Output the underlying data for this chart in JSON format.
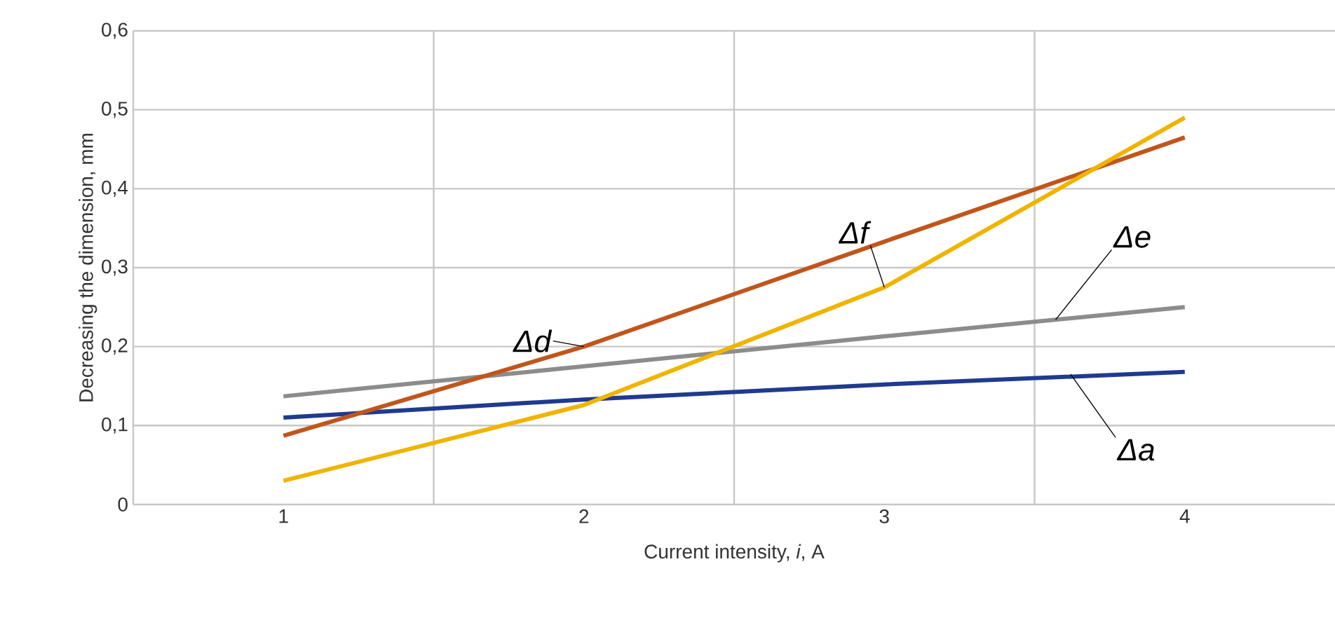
{
  "chart_data": {
    "type": "line",
    "xlabel": "Current intensity, *i*, A",
    "ylabel": "Decreasing the dimension, mm",
    "x": [
      1,
      2,
      3,
      4
    ],
    "series": [
      {
        "color": "#1f3a8f",
        "values": [
          0.11,
          0.133,
          0.152,
          0.168
        ]
      },
      {
        "color": "#8c8c8c",
        "values": [
          0.137,
          0.175,
          0.213,
          0.25
        ]
      },
      {
        "color": "#c0561c",
        "values": [
          0.087,
          0.2,
          0.333,
          0.465
        ]
      },
      {
        "color": "#f0b400",
        "values": [
          0.03,
          0.126,
          0.275,
          0.49
        ]
      }
    ],
    "xlim": [
      0.5,
      4.5
    ],
    "xticks": [
      {
        "value": 0.5,
        "label": null
      },
      1,
      {
        "value": 1.5,
        "label": null
      },
      2,
      {
        "value": 2.5,
        "label": null
      },
      3,
      {
        "value": 3.5,
        "label": null
      },
      4
    ],
    "ylim": [
      0,
      0.6
    ],
    "yticks": [
      0,
      {
        "value": 0.1,
        "label": "0,1"
      },
      {
        "value": 0.2,
        "label": "0,2"
      },
      {
        "value": 0.3,
        "label": "0,3"
      },
      {
        "value": 0.4,
        "label": "0,4"
      },
      {
        "value": 0.5,
        "label": "0,5"
      },
      {
        "value": 0.6,
        "label": "0,6"
      }
    ],
    "grid": true,
    "marker": "none",
    "line_style": "solid",
    "annotations": [
      {
        "text": "Δd",
        "x": 2,
        "y": 0.2
      },
      {
        "text": "Δf",
        "x": 3,
        "y": 0.275
      },
      {
        "text": "Δe",
        "x": 3.57,
        "y": 0.234
      },
      {
        "text": "Δa",
        "x": 3.62,
        "y": 0.165
      }
    ]
  }
}
